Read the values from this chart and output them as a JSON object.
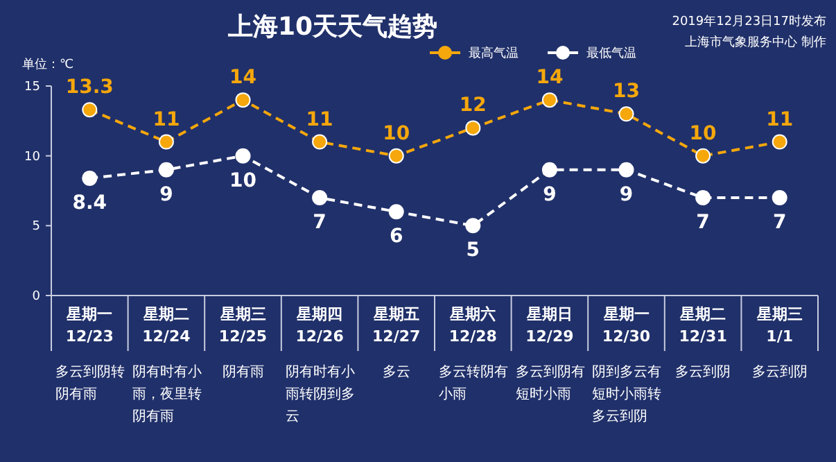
{
  "chart_data": {
    "type": "line",
    "title": "上海10天天气趋势",
    "subtitle": "2019年12月23日17时发布",
    "ylabel": "单位：℃",
    "categories": [
      "星期一\n12/23",
      "星期二\n12/24",
      "星期三\n12/25",
      "星期四\n12/26",
      "星期五\n12/27",
      "星期六\n12/28",
      "星期日\n12/29",
      "星期一\n12/30",
      "星期二\n12/31",
      "星期三\n1/1"
    ],
    "series": [
      {
        "name": "最高气温",
        "color": "#f5a70c",
        "values": [
          13.3,
          11,
          14,
          11,
          10,
          12,
          14,
          13,
          10,
          11
        ]
      },
      {
        "name": "最低气温",
        "color": "#ffffff",
        "values": [
          8.4,
          9,
          10,
          7,
          6,
          5,
          9,
          9,
          7,
          7
        ]
      }
    ],
    "ylim": [
      0,
      15
    ],
    "yticks": [
      0,
      5,
      10,
      15
    ],
    "data_labels": true,
    "marker": "circle",
    "line_style": "dashed",
    "legend": "top right",
    "annotations": [
      "上海市气象服务中心 制作",
      "多云到阴转阴有雨",
      "阴有时有小雨，夜里转阴有雨",
      "阴有雨",
      "阴有时有小雨转阴到多云",
      "多云",
      "多云转阴有小雨",
      "多云到阴有短时小雨",
      "阴到多云有短时小雨转多云到阴",
      "多云到阴",
      "多云到阴"
    ]
  }
}
